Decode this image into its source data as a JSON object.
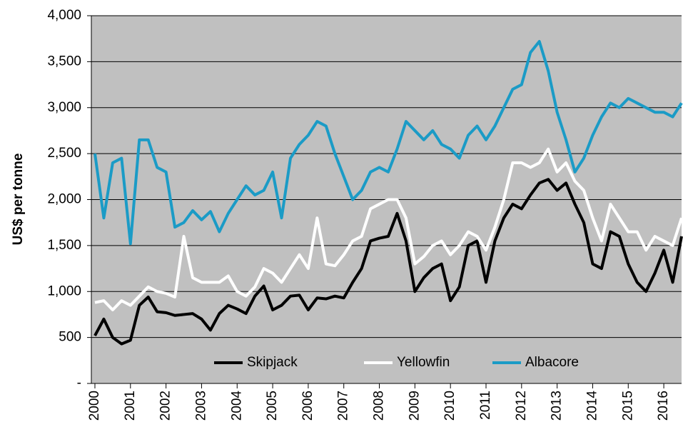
{
  "chart_data": {
    "type": "line",
    "y_label": "US$ per tonne",
    "x": [
      2000,
      2000.25,
      2000.5,
      2000.75,
      2001,
      2001.25,
      2001.5,
      2001.75,
      2002,
      2002.25,
      2002.5,
      2002.75,
      2003,
      2003.25,
      2003.5,
      2003.75,
      2004,
      2004.25,
      2004.5,
      2004.75,
      2005,
      2005.25,
      2005.5,
      2005.75,
      2006,
      2006.25,
      2006.5,
      2006.75,
      2007,
      2007.25,
      2007.5,
      2007.75,
      2008,
      2008.25,
      2008.5,
      2008.75,
      2009,
      2009.25,
      2009.5,
      2009.75,
      2010,
      2010.25,
      2010.5,
      2010.75,
      2011,
      2011.25,
      2011.5,
      2011.75,
      2012,
      2012.25,
      2012.5,
      2012.75,
      2013,
      2013.25,
      2013.5,
      2013.75,
      2014,
      2014.25,
      2014.5,
      2014.75,
      2015,
      2015.25,
      2015.5,
      2015.75,
      2016,
      2016.25,
      2016.5
    ],
    "series": [
      {
        "name": "Skipjack",
        "color": "#000000",
        "values": [
          520,
          700,
          500,
          430,
          470,
          850,
          940,
          780,
          770,
          740,
          750,
          760,
          700,
          580,
          760,
          850,
          810,
          760,
          950,
          1060,
          800,
          850,
          950,
          960,
          800,
          930,
          920,
          950,
          930,
          1100,
          1250,
          1550,
          1580,
          1600,
          1850,
          1550,
          1000,
          1150,
          1250,
          1300,
          900,
          1050,
          1500,
          1550,
          1100,
          1550,
          1800,
          1950,
          1900,
          2050,
          2180,
          2220,
          2100,
          2180,
          1950,
          1750,
          1300,
          1250,
          1650,
          1600,
          1300,
          1100,
          1000,
          1200,
          1450,
          1100,
          1600
        ]
      },
      {
        "name": "Yellowfin",
        "color": "#ffffff",
        "values": [
          880,
          900,
          800,
          900,
          850,
          950,
          1050,
          1000,
          980,
          940,
          1600,
          1150,
          1100,
          1100,
          1100,
          1170,
          1000,
          950,
          1050,
          1250,
          1200,
          1100,
          1250,
          1400,
          1250,
          1800,
          1300,
          1280,
          1400,
          1550,
          1600,
          1900,
          1950,
          2000,
          2000,
          1800,
          1300,
          1380,
          1500,
          1550,
          1400,
          1500,
          1650,
          1600,
          1450,
          1700,
          2000,
          2400,
          2400,
          2350,
          2400,
          2550,
          2300,
          2400,
          2200,
          2100,
          1800,
          1550,
          1950,
          1800,
          1650,
          1650,
          1450,
          1600,
          1550,
          1500,
          1800
        ]
      },
      {
        "name": "Albacore",
        "color": "#1b9bc6",
        "values": [
          2500,
          1800,
          2400,
          2450,
          1520,
          2650,
          2650,
          2350,
          2300,
          1700,
          1750,
          1880,
          1780,
          1870,
          1650,
          1850,
          2000,
          2150,
          2050,
          2100,
          2300,
          1800,
          2450,
          2600,
          2700,
          2850,
          2800,
          2500,
          2250,
          2000,
          2100,
          2300,
          2350,
          2300,
          2550,
          2850,
          2750,
          2650,
          2750,
          2600,
          2550,
          2450,
          2700,
          2800,
          2650,
          2800,
          3000,
          3200,
          3250,
          3600,
          3720,
          3400,
          2950,
          2650,
          2300,
          2450,
          2700,
          2900,
          3050,
          3000,
          3100,
          3050,
          3000,
          2950,
          2950,
          2900,
          3050
        ]
      }
    ],
    "xlim": [
      1999.9,
      2016.5
    ],
    "xticks": [
      2000,
      2001,
      2002,
      2003,
      2004,
      2005,
      2006,
      2007,
      2008,
      2009,
      2010,
      2011,
      2012,
      2013,
      2014,
      2015,
      2016
    ],
    "ylim": [
      0,
      4000
    ],
    "yticks": [
      {
        "value": 0,
        "label": "-"
      },
      500,
      {
        "value": 1000,
        "label": "1,000"
      },
      {
        "value": 1500,
        "label": "1,500"
      },
      {
        "value": 2000,
        "label": "2,000"
      },
      {
        "value": 2500,
        "label": "2,500"
      },
      {
        "value": 3000,
        "label": "3,000"
      },
      {
        "value": 3500,
        "label": "3,500"
      },
      {
        "value": 4000,
        "label": "4,000"
      }
    ],
    "grid": true,
    "plot_background": "#c0c0c0",
    "legend": "bottom"
  }
}
